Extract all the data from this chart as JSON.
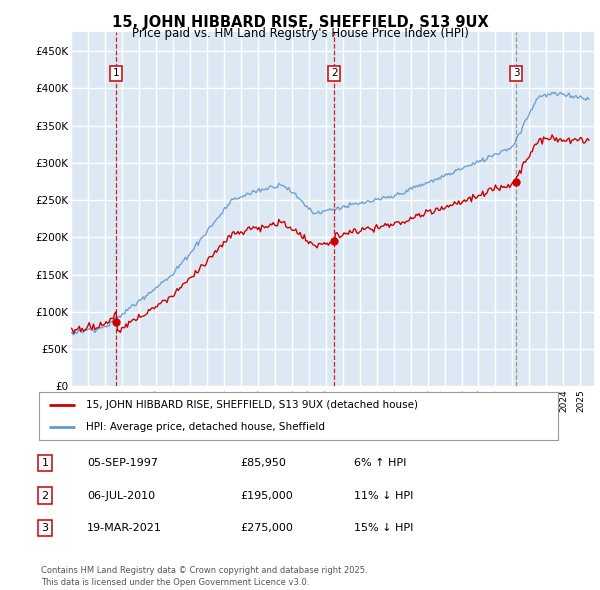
{
  "title": "15, JOHN HIBBARD RISE, SHEFFIELD, S13 9UX",
  "subtitle": "Price paid vs. HM Land Registry's House Price Index (HPI)",
  "ylim": [
    0,
    475000
  ],
  "yticks": [
    0,
    50000,
    100000,
    150000,
    200000,
    250000,
    300000,
    350000,
    400000,
    450000
  ],
  "ytick_labels": [
    "£0",
    "£50K",
    "£100K",
    "£150K",
    "£200K",
    "£250K",
    "£300K",
    "£350K",
    "£400K",
    "£450K"
  ],
  "background_color": "#dce9f5",
  "grid_color": "#ffffff",
  "red_line_color": "#cc0000",
  "blue_line_color": "#6699cc",
  "purchases": [
    {
      "date_num": 1997.67,
      "price": 85950,
      "label": "1",
      "date_str": "05-SEP-1997",
      "pct": "6%",
      "dir": "↑",
      "vline_color": "#cc0000",
      "vline_style": "--"
    },
    {
      "date_num": 2010.51,
      "price": 195000,
      "label": "2",
      "date_str": "06-JUL-2010",
      "pct": "11%",
      "dir": "↓",
      "vline_color": "#cc0000",
      "vline_style": "--"
    },
    {
      "date_num": 2021.22,
      "price": 275000,
      "label": "3",
      "date_str": "19-MAR-2021",
      "pct": "15%",
      "dir": "↓",
      "vline_color": "#888888",
      "vline_style": "--"
    }
  ],
  "legend_label_red": "15, JOHN HIBBARD RISE, SHEFFIELD, S13 9UX (detached house)",
  "legend_label_blue": "HPI: Average price, detached house, Sheffield",
  "footnote": "Contains HM Land Registry data © Crown copyright and database right 2025.\nThis data is licensed under the Open Government Licence v3.0.",
  "table_rows": [
    [
      "1",
      "05-SEP-1997",
      "£85,950",
      "6% ↑ HPI"
    ],
    [
      "2",
      "06-JUL-2010",
      "£195,000",
      "11% ↓ HPI"
    ],
    [
      "3",
      "19-MAR-2021",
      "£275,000",
      "15% ↓ HPI"
    ]
  ]
}
